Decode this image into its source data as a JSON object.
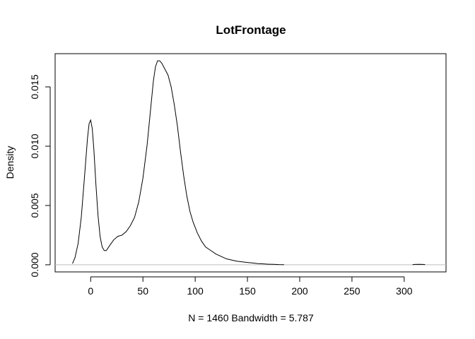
{
  "chart_data": {
    "type": "line",
    "title": "LotFrontage",
    "xlabel": "N = 1460   Bandwidth = 5.787",
    "ylabel": "Density",
    "xlim": [
      -34,
      340
    ],
    "ylim": [
      -0.0006,
      0.0178
    ],
    "xticks": [
      0,
      50,
      100,
      150,
      200,
      250,
      300
    ],
    "xtick_labels": [
      "0",
      "50",
      "100",
      "150",
      "200",
      "250",
      "300"
    ],
    "yticks": [
      0.0,
      0.005,
      0.01,
      0.015
    ],
    "ytick_labels": [
      "0.000",
      "0.005",
      "0.010",
      "0.015"
    ],
    "baseline": 0,
    "grid": false,
    "legend": "none",
    "colors": {
      "line": "#000000",
      "baseline": "#bebebe",
      "frame": "#000000"
    },
    "series": [
      {
        "segments": [
          [
            [
              -17.4,
              0.0001
            ],
            [
              -15,
              0.0006
            ],
            [
              -12,
              0.0018
            ],
            [
              -9,
              0.004
            ],
            [
              -6,
              0.0073
            ],
            [
              -3,
              0.0107
            ],
            [
              -1.5,
              0.0119
            ],
            [
              0,
              0.0122
            ],
            [
              1.5,
              0.0115
            ],
            [
              3,
              0.0098
            ],
            [
              5,
              0.0068
            ],
            [
              7,
              0.0042
            ],
            [
              9,
              0.0024
            ],
            [
              11,
              0.0015
            ],
            [
              13,
              0.0012
            ],
            [
              15,
              0.0012
            ],
            [
              18,
              0.0016
            ],
            [
              22,
              0.0021
            ],
            [
              26,
              0.0024
            ],
            [
              30,
              0.0025
            ],
            [
              34,
              0.0028
            ],
            [
              38,
              0.0033
            ],
            [
              42,
              0.004
            ],
            [
              46,
              0.0053
            ],
            [
              50,
              0.0073
            ],
            [
              54,
              0.0101
            ],
            [
              57,
              0.0128
            ],
            [
              60,
              0.0155
            ],
            [
              62,
              0.0167
            ],
            [
              64,
              0.0172
            ],
            [
              66,
              0.0172
            ],
            [
              68,
              0.017
            ],
            [
              71,
              0.0165
            ],
            [
              74,
              0.016
            ],
            [
              77,
              0.015
            ],
            [
              80,
              0.0135
            ],
            [
              83,
              0.0117
            ],
            [
              86,
              0.0095
            ],
            [
              89,
              0.0075
            ],
            [
              92,
              0.0058
            ],
            [
              95,
              0.0045
            ],
            [
              98,
              0.0036
            ],
            [
              102,
              0.0027
            ],
            [
              106,
              0.002
            ],
            [
              110,
              0.0015
            ],
            [
              115,
              0.0012
            ],
            [
              120,
              0.0009
            ],
            [
              125,
              0.0007
            ],
            [
              130,
              0.0005
            ],
            [
              135,
              0.0004
            ],
            [
              140,
              0.0003
            ],
            [
              145,
              0.00025
            ],
            [
              150,
              0.0002
            ],
            [
              155,
              0.00015
            ],
            [
              160,
              0.0001
            ],
            [
              165,
              8e-05
            ],
            [
              170,
              5e-05
            ],
            [
              175,
              4e-05
            ],
            [
              180,
              2e-05
            ],
            [
              185,
              1e-05
            ]
          ],
          [
            [
              308,
              1e-05
            ],
            [
              310,
              3e-05
            ],
            [
              314,
              4e-05
            ],
            [
              318,
              3e-05
            ],
            [
              320,
              1e-05
            ]
          ]
        ]
      }
    ]
  }
}
